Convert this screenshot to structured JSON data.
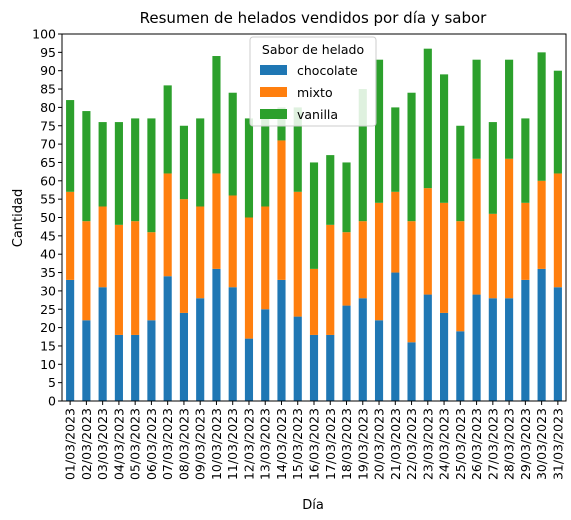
{
  "chart_data": {
    "type": "bar",
    "stacked": true,
    "title": "Resumen de helados vendidos por día y sabor",
    "xlabel": "Día",
    "ylabel": "Cantidad",
    "ylim": [
      0,
      100
    ],
    "ytick_step": 5,
    "legend": {
      "title": "Sabor de helado",
      "placement": "top-center"
    },
    "categories": [
      "01/03/2023",
      "02/03/2023",
      "03/03/2023",
      "04/03/2023",
      "05/03/2023",
      "06/03/2023",
      "07/03/2023",
      "08/03/2023",
      "09/03/2023",
      "10/03/2023",
      "11/03/2023",
      "12/03/2023",
      "13/03/2023",
      "14/03/2023",
      "15/03/2023",
      "16/03/2023",
      "17/03/2023",
      "18/03/2023",
      "19/03/2023",
      "20/03/2023",
      "21/03/2023",
      "22/03/2023",
      "23/03/2023",
      "24/03/2023",
      "25/03/2023",
      "26/03/2023",
      "27/03/2023",
      "28/03/2023",
      "29/03/2023",
      "30/03/2023",
      "31/03/2023"
    ],
    "series": [
      {
        "name": "chocolate",
        "color": "#1f77b4",
        "values": [
          33,
          22,
          31,
          18,
          18,
          22,
          34,
          24,
          28,
          36,
          31,
          17,
          25,
          33,
          23,
          18,
          18,
          26,
          28,
          22,
          35,
          16,
          29,
          24,
          19,
          29,
          28,
          28,
          33,
          36,
          31
        ]
      },
      {
        "name": "mixto",
        "color": "#ff7f0e",
        "values": [
          24,
          27,
          22,
          30,
          31,
          24,
          28,
          31,
          25,
          26,
          25,
          33,
          28,
          38,
          34,
          18,
          30,
          20,
          21,
          32,
          22,
          33,
          29,
          30,
          30,
          37,
          23,
          38,
          21,
          24,
          31
        ]
      },
      {
        "name": "vanilla",
        "color": "#2ca02c",
        "values": [
          25,
          30,
          23,
          28,
          28,
          31,
          24,
          20,
          24,
          32,
          28,
          27,
          26,
          9,
          23,
          29,
          19,
          19,
          36,
          39,
          23,
          35,
          38,
          35,
          26,
          27,
          25,
          27,
          23,
          35,
          28
        ]
      }
    ]
  }
}
